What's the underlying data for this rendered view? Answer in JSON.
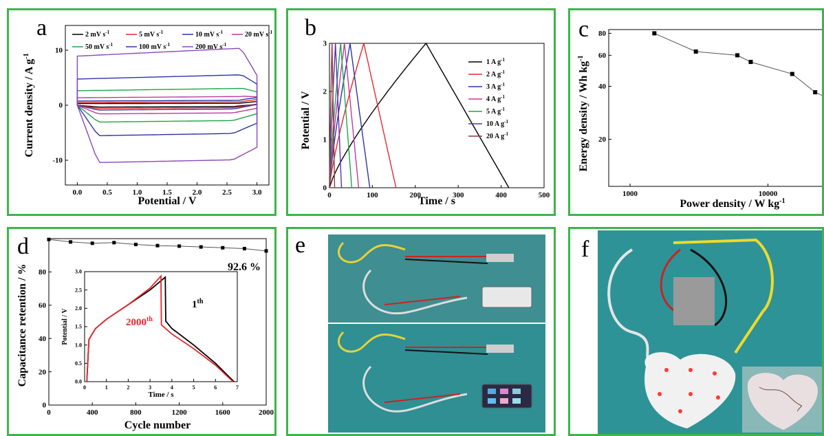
{
  "chart_data": [
    {
      "type": "line",
      "panel_label": "a",
      "xlabel": "Potential / V",
      "ylabel": "Current density / A g",
      "ylabel_sup": "-1",
      "xlim": [
        -0.2,
        3.2
      ],
      "ylim": [
        -14.5,
        14.5
      ],
      "xticks": [
        0.0,
        0.5,
        1.0,
        1.5,
        2.0,
        2.5,
        3.0
      ],
      "xtick_labels": [
        "0.0",
        "0.5",
        "1.0",
        "1.5",
        "2.0",
        "2.5",
        "3.0"
      ],
      "yticks": [
        -10,
        0,
        10
      ],
      "ytick_labels": [
        "-10",
        "0",
        "10"
      ],
      "legend_position": "top",
      "series": [
        {
          "name": "2 mV s",
          "sup": "-1",
          "color": "#000000",
          "half_width": 0.35,
          "tail": 0.4
        },
        {
          "name": "5 mV s",
          "sup": "-1",
          "color": "#e8262d",
          "half_width": 0.6,
          "tail": 0.6
        },
        {
          "name": "10 mV s",
          "sup": "-1",
          "color": "#2a34a6",
          "half_width": 0.9,
          "tail": 0.8
        },
        {
          "name": "20 mV s",
          "sup": "-1",
          "color": "#c0399a",
          "half_width": 1.6,
          "tail": 0.8
        },
        {
          "name": "50 mV s",
          "sup": "-1",
          "color": "#22a24a",
          "half_width": 3.1,
          "tail": 1.2
        },
        {
          "name": "100 mV s",
          "sup": "-1",
          "color": "#2a34a6",
          "half_width": 5.6,
          "tail": 1.8
        },
        {
          "name": "200 mV s",
          "sup": "-1",
          "color": "#8b47b8",
          "half_width": 10.5,
          "tail": 2.2
        }
      ]
    },
    {
      "type": "line",
      "panel_label": "b",
      "xlabel": "Time / s",
      "ylabel": "Potential / V",
      "xlim": [
        0,
        500
      ],
      "ylim": [
        0,
        3.0
      ],
      "xticks": [
        0,
        100,
        200,
        300,
        400,
        500
      ],
      "xtick_labels": [
        "0",
        "100",
        "200",
        "300",
        "400",
        "500"
      ],
      "yticks": [
        0,
        1,
        2,
        3
      ],
      "ytick_labels": [
        "0",
        "1",
        "2",
        "3"
      ],
      "legend_position": "right",
      "series": [
        {
          "name": "1 A g",
          "sup": "-1",
          "color": "#000000",
          "peak": 225,
          "end": 418
        },
        {
          "name": "2 A g",
          "sup": "-1",
          "color": "#e8262d",
          "peak": 80,
          "end": 155
        },
        {
          "name": "3 A g",
          "sup": "-1",
          "color": "#2a34a6",
          "peak": 48,
          "end": 94
        },
        {
          "name": "4 A g",
          "sup": "-1",
          "color": "#c0399a",
          "peak": 35,
          "end": 68
        },
        {
          "name": "5 A g",
          "sup": "-1",
          "color": "#22a24a",
          "peak": 26,
          "end": 52
        },
        {
          "name": "10 A g",
          "sup": "-1",
          "color": "#5a2fb0",
          "peak": 14,
          "end": 28
        },
        {
          "name": "20 A g",
          "sup": "-1",
          "color": "#8b3a3a",
          "peak": 6,
          "end": 12
        }
      ]
    },
    {
      "type": "scatter",
      "panel_label": "c",
      "xlabel": "Power density / W kg",
      "xlabel_sup": "-1",
      "ylabel": "Energy density / Wh kg",
      "ylabel_sup": "-1",
      "x_scale": "log",
      "y_scale": "log",
      "xlim": [
        700,
        31000
      ],
      "ylim": [
        10.8,
        84
      ],
      "xticks": [
        1000,
        10000
      ],
      "xtick_labels": [
        "1000",
        "10000"
      ],
      "yticks": [
        20,
        40,
        60,
        80
      ],
      "ytick_labels": [
        "20",
        "40",
        "60",
        "80"
      ],
      "points": [
        {
          "x": 1500,
          "y": 80
        },
        {
          "x": 3000,
          "y": 63
        },
        {
          "x": 6000,
          "y": 60
        },
        {
          "x": 7500,
          "y": 55
        },
        {
          "x": 15000,
          "y": 47
        },
        {
          "x": 22000,
          "y": 37
        },
        {
          "x": 30000,
          "y": 33
        }
      ]
    },
    {
      "type": "scatter",
      "panel_label": "d",
      "xlabel": "Cycle number",
      "ylabel": "Capacitance retention / %",
      "xlim": [
        0,
        2000
      ],
      "ylim": [
        0,
        100
      ],
      "xticks": [
        0,
        400,
        800,
        1200,
        1600,
        2000
      ],
      "xtick_labels": [
        "0",
        "400",
        "800",
        "1200",
        "1600",
        "2000"
      ],
      "yticks": [
        0,
        20,
        40,
        60,
        80
      ],
      "ytick_labels": [
        "0",
        "20",
        "40",
        "60",
        "80"
      ],
      "annotation": "92.6 %",
      "points": [
        {
          "x": 0,
          "y": 99.5
        },
        {
          "x": 200,
          "y": 98
        },
        {
          "x": 400,
          "y": 97.2
        },
        {
          "x": 600,
          "y": 97.6
        },
        {
          "x": 800,
          "y": 96.5
        },
        {
          "x": 1000,
          "y": 95.8
        },
        {
          "x": 1200,
          "y": 95.5
        },
        {
          "x": 1400,
          "y": 95
        },
        {
          "x": 1600,
          "y": 94.5
        },
        {
          "x": 1800,
          "y": 94
        },
        {
          "x": 2000,
          "y": 92.6
        }
      ],
      "inset": {
        "type": "line",
        "xlabel": "Time / s",
        "ylabel": "Potential / V",
        "xlim": [
          0,
          7
        ],
        "ylim": [
          0,
          3.0
        ],
        "xticks": [
          0,
          1,
          2,
          3,
          4,
          5,
          6,
          7
        ],
        "xtick_labels": [
          "0",
          "1",
          "2",
          "3",
          "4",
          "5",
          "6",
          "7"
        ],
        "yticks": [
          0.0,
          0.5,
          1.0,
          1.5,
          2.0,
          2.5,
          3.0
        ],
        "ytick_labels": [
          "0.0",
          "0.5",
          "1.0",
          "1.5",
          "2.0",
          "2.5",
          "3.0"
        ],
        "series": [
          {
            "label": "1",
            "label_sup": "th",
            "color": "#000000",
            "points": [
              [
                0.1,
                0
              ],
              [
                0.2,
                1.15
              ],
              [
                0.5,
                1.45
              ],
              [
                1,
                1.7
              ],
              [
                2,
                2.1
              ],
              [
                3,
                2.5
              ],
              [
                3.7,
                2.85
              ],
              [
                3.72,
                1.65
              ],
              [
                4,
                1.45
              ],
              [
                5,
                1.0
              ],
              [
                6,
                0.5
              ],
              [
                6.85,
                0
              ]
            ]
          },
          {
            "label": "2000",
            "label_sup": "th",
            "color": "#e8262d",
            "points": [
              [
                0.1,
                0
              ],
              [
                0.2,
                1.15
              ],
              [
                0.5,
                1.45
              ],
              [
                1,
                1.7
              ],
              [
                2,
                2.1
              ],
              [
                3,
                2.55
              ],
              [
                3.5,
                2.88
              ],
              [
                3.52,
                1.55
              ],
              [
                4,
                1.3
              ],
              [
                5,
                0.9
              ],
              [
                6,
                0.45
              ],
              [
                6.8,
                0
              ]
            ]
          }
        ]
      }
    }
  ],
  "photos": [
    {
      "panel_label": "e"
    },
    {
      "panel_label": "f"
    }
  ],
  "colors": {
    "panel_border": "#3cb54a"
  }
}
